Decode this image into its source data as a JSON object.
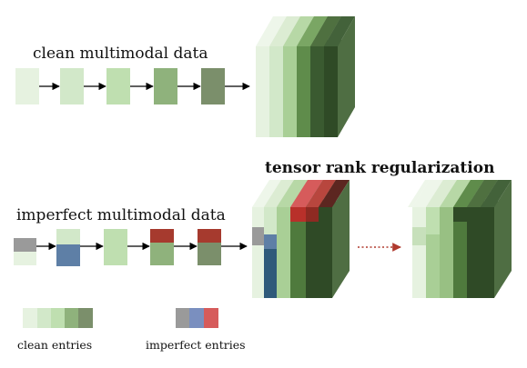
{
  "labels": {
    "clean_data": "clean multimodal data",
    "imperfect_data": "imperfect multimodal data",
    "regularization": "tensor rank regularization",
    "clean_entries": "clean entries",
    "imperfect_entries": "imperfect entries"
  },
  "colors": {
    "greens": [
      "#e6f2e0",
      "#d2e8c9",
      "#bfdfb0",
      "#8fb27c",
      "#7b8f6b",
      "#4f6e43",
      "#2f4a26"
    ],
    "imperfect": [
      "#9a9a9a",
      "#7a8fbf",
      "#d65b5b"
    ],
    "blue": "#5e7fa6",
    "dark_blue": "#2f5a7a",
    "red": "#a63a2e",
    "arrow": "#000000",
    "dotted_arrow": "#b03a2e"
  },
  "icons": {
    "arrow": "right-arrow-icon",
    "dotted_arrow": "dotted-right-arrow-icon"
  }
}
